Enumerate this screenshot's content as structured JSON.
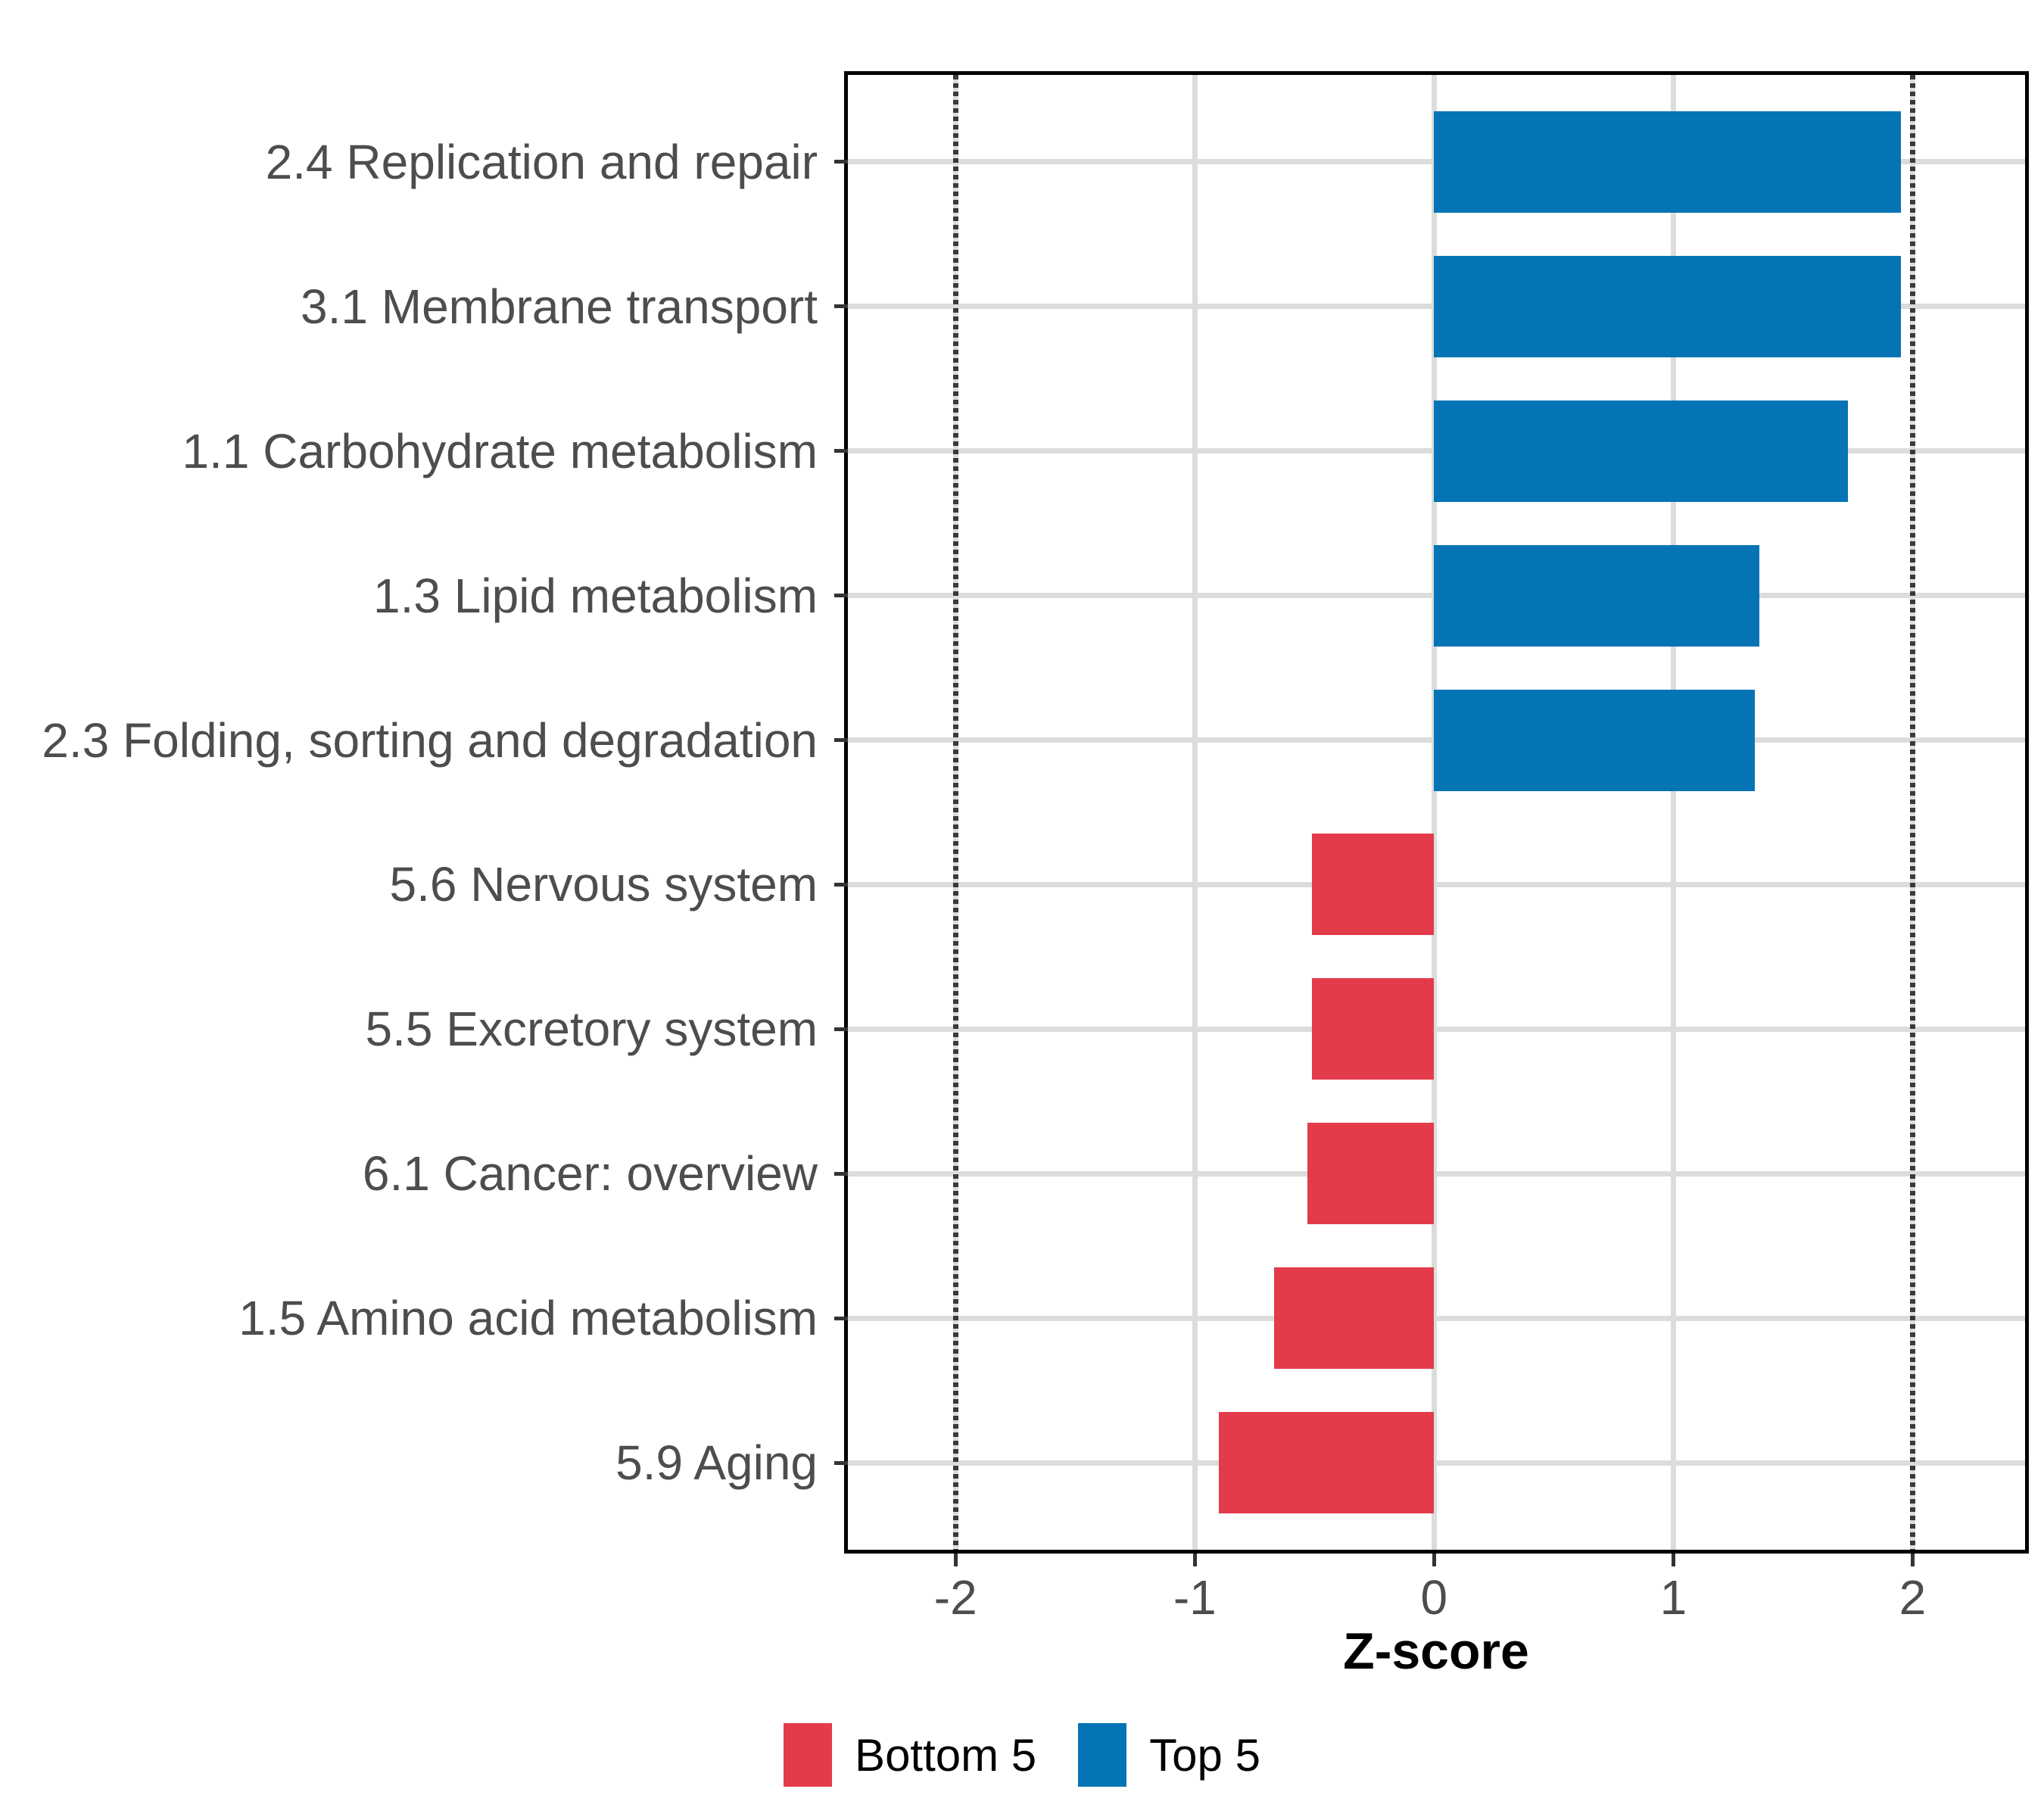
{
  "chart_data": {
    "type": "bar",
    "orientation": "horizontal",
    "title": "",
    "xlabel": "Z-score",
    "ylabel": "",
    "xlim": [
      -2.45,
      2.47
    ],
    "x_ticks": [
      -2,
      -1,
      0,
      1,
      2
    ],
    "x_tick_labels": [
      "-2",
      "-1",
      "0",
      "1",
      "2"
    ],
    "reference_lines": [
      -2,
      2
    ],
    "grid": true,
    "legend_position": "bottom",
    "categories": [
      "2.4 Replication and repair",
      "3.1 Membrane transport",
      "1.1 Carbohydrate metabolism",
      "1.3 Lipid metabolism",
      "2.3 Folding, sorting and degradation",
      "5.6 Nervous system",
      "5.5 Excretory system",
      "6.1 Cancer: overview",
      "1.5 Amino acid metabolism",
      "5.9 Aging"
    ],
    "values": [
      1.95,
      1.95,
      1.73,
      1.36,
      1.34,
      -0.51,
      -0.51,
      -0.53,
      -0.67,
      -0.9
    ],
    "series": [
      {
        "name": "Top 5",
        "color": "#0474B4",
        "category_indices": [
          0,
          1,
          2,
          3,
          4
        ]
      },
      {
        "name": "Bottom 5",
        "color": "#E33B4A",
        "category_indices": [
          5,
          6,
          7,
          8,
          9
        ]
      }
    ],
    "legend": [
      {
        "label": "Bottom 5",
        "color": "#E33B4A"
      },
      {
        "label": "Top 5",
        "color": "#0474B4"
      }
    ]
  },
  "colors": {
    "grid": "#DCDCDC",
    "reference_line": "#3A3A3A",
    "axis_text": "#4D4D4D",
    "tick_mark": "#333333",
    "panel_border": "#000000",
    "background": "#FFFFFF"
  }
}
